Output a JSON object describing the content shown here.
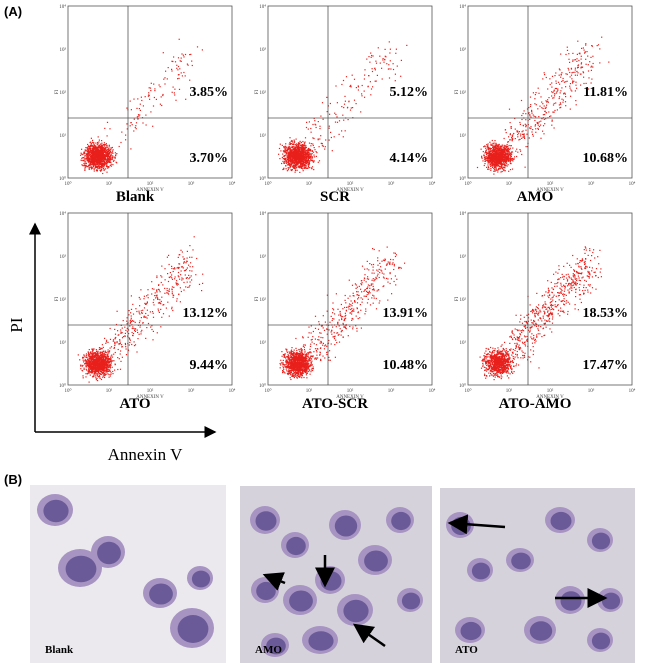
{
  "panel_a": {
    "label": "(A)",
    "y_axis": "PI",
    "x_axis": "Annexin V",
    "plot_x_label": "ANNEXIN V",
    "plot_y_label": "FI",
    "ticks": [
      "10⁰",
      "10¹",
      "10²",
      "10³",
      "10⁴"
    ],
    "plots": [
      {
        "name": "Blank",
        "upper_right": "3.85%",
        "lower_right": "3.70%"
      },
      {
        "name": "SCR",
        "upper_right": "5.12%",
        "lower_right": "4.14%"
      },
      {
        "name": "AMO",
        "upper_right": "11.81%",
        "lower_right": "10.68%"
      },
      {
        "name": "ATO",
        "upper_right": "13.12%",
        "lower_right": "9.44%"
      },
      {
        "name": "ATO-SCR",
        "upper_right": "13.91%",
        "lower_right": "10.48%"
      },
      {
        "name": "ATO-AMO",
        "upper_right": "18.53%",
        "lower_right": "17.47%"
      }
    ]
  },
  "panel_b": {
    "label": "(B)",
    "images": [
      {
        "name": "Blank"
      },
      {
        "name": "AMO"
      },
      {
        "name": "ATO"
      }
    ]
  }
}
